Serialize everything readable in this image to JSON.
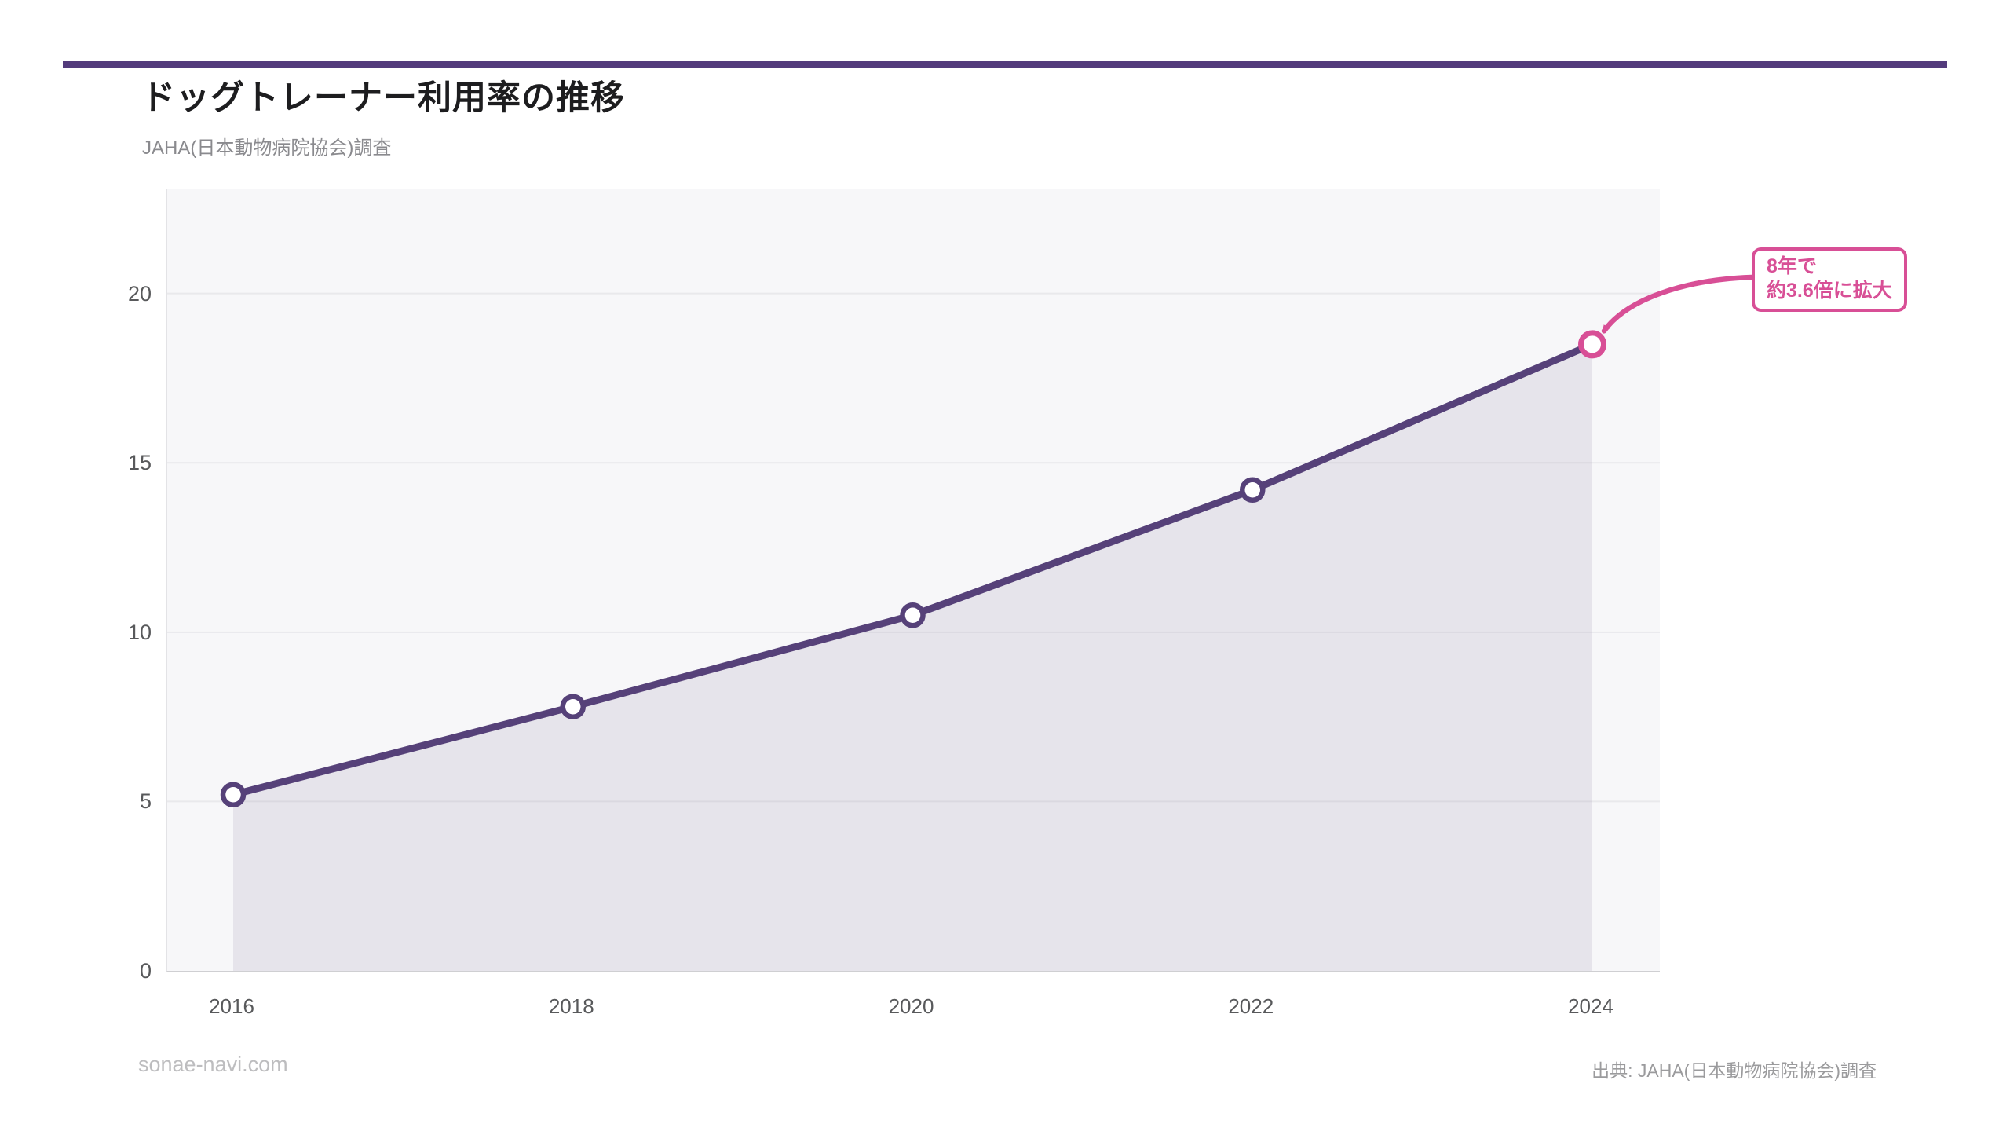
{
  "page": {
    "title": "ドッグトレーナー利用率の推移",
    "subtitle": "JAHA(日本動物病院協会)調査",
    "footer_left": "sonae-navi.com",
    "footer_right": "出典: JAHA(日本動物病院協会)調査"
  },
  "colors": {
    "accent_bar": "#533b7c",
    "line": "#564179",
    "marker_stroke": "#564179",
    "marker_fill": "#ffffff",
    "area_fill": "rgba(86,65,121,0.10)",
    "annotation_pink": "#d84f96",
    "plot_bg": "#f7f7f9",
    "gridline": "#e9e9ec",
    "tick_text": "#58595b"
  },
  "chart_data": {
    "type": "line",
    "title": "ドッグトレーナー利用率の推移",
    "subtitle": "JAHA(日本動物病院協会)調査",
    "categories": [
      "2016",
      "2018",
      "2020",
      "2022",
      "2024"
    ],
    "values": [
      5.2,
      7.8,
      10.5,
      14.2,
      18.5
    ],
    "ylabel": "",
    "xlabel": "",
    "ylim": [
      0,
      23.1
    ],
    "yticks": [
      0,
      5,
      10,
      15,
      20
    ],
    "grid": true,
    "legend": false,
    "area_under_line": true,
    "highlight_last_point": true,
    "annotation": {
      "line1": "8年で",
      "line2": "約3.6倍に拡大",
      "target_category": "2024",
      "target_value": 18.5
    }
  }
}
